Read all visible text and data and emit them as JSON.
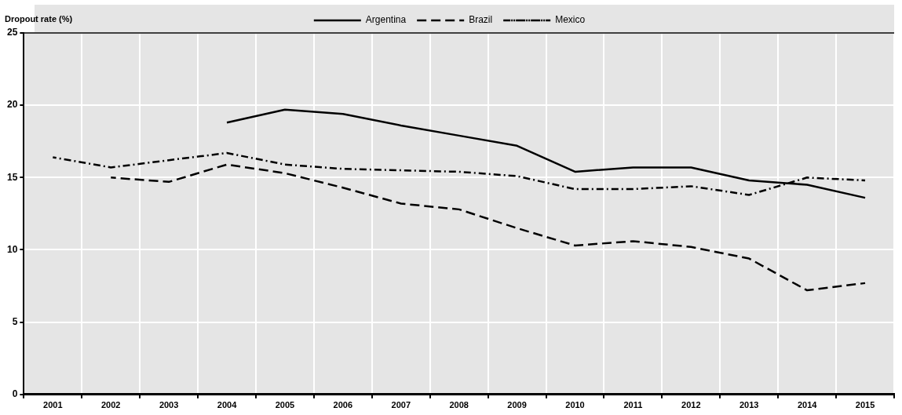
{
  "chart_data": {
    "type": "line",
    "ylabel": "Dropout rate (%)",
    "categories": [
      "2001",
      "2002",
      "2003",
      "2004",
      "2005",
      "2006",
      "2007",
      "2008",
      "2009",
      "2010",
      "2011",
      "2012",
      "2013",
      "2014",
      "2015"
    ],
    "series": [
      {
        "name": "Argentina",
        "color": "#000000",
        "line_style": "solid",
        "values": [
          null,
          null,
          null,
          18.8,
          19.7,
          19.4,
          18.6,
          17.9,
          17.2,
          15.4,
          15.7,
          15.7,
          14.8,
          14.5,
          13.6
        ]
      },
      {
        "name": "Brazil",
        "color": "#000000",
        "line_style": "dashed",
        "values": [
          null,
          15.0,
          14.7,
          15.9,
          15.3,
          14.3,
          13.2,
          12.8,
          11.5,
          10.3,
          10.6,
          10.2,
          9.4,
          7.2,
          7.7
        ]
      },
      {
        "name": "Mexico",
        "color": "#000000",
        "line_style": "dashdot",
        "values": [
          16.4,
          15.7,
          16.2,
          16.7,
          15.9,
          15.6,
          15.5,
          15.4,
          15.1,
          14.2,
          14.2,
          14.4,
          13.8,
          15.0,
          14.8
        ]
      }
    ],
    "ylim": [
      0,
      25
    ],
    "yticks": [
      0,
      5,
      10,
      15,
      20,
      25
    ],
    "grid": true,
    "legend": "top",
    "marker": "none"
  }
}
